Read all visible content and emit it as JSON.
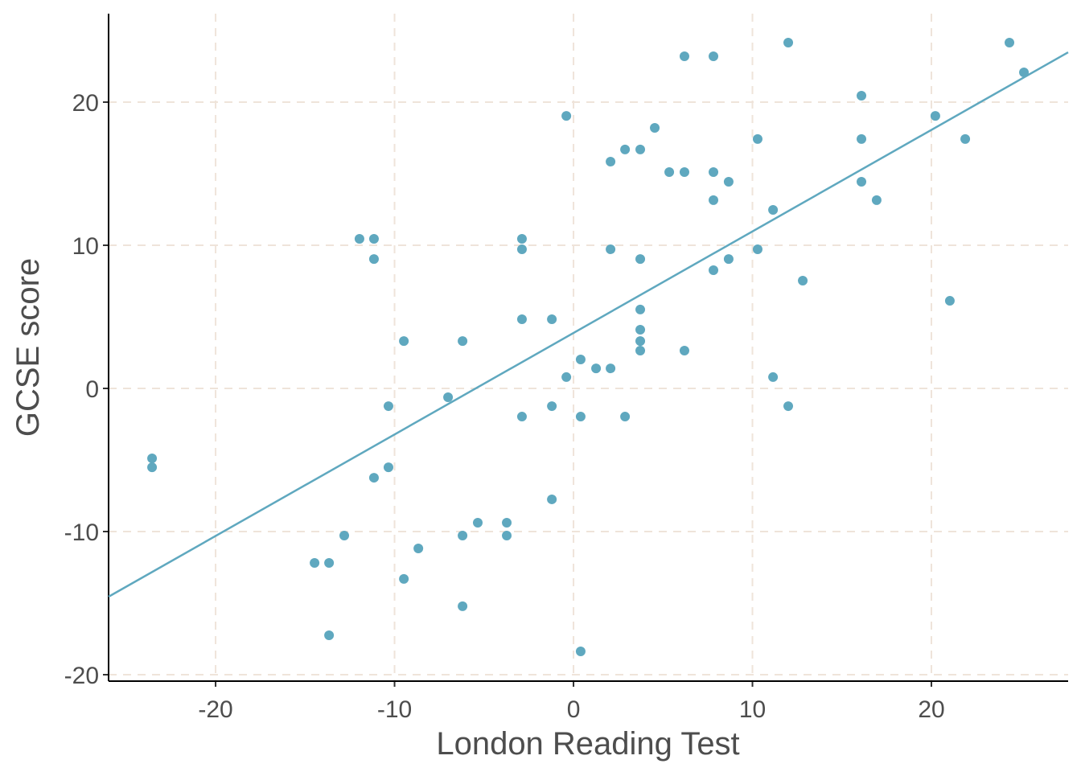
{
  "chart_data": {
    "type": "scatter",
    "x_label": "London Reading Test",
    "y_label": "GCSE score",
    "x": [
      -23.55,
      -23.55,
      -14.47,
      -13.66,
      -13.66,
      -12.81,
      -11.96,
      -11.15,
      -11.15,
      -11.15,
      -10.34,
      -10.34,
      -9.48,
      -9.48,
      -8.67,
      -7.01,
      -6.2,
      -6.2,
      -6.2,
      -5.35,
      -3.73,
      -3.73,
      -2.88,
      -2.88,
      -2.88,
      -2.88,
      -1.21,
      -1.21,
      -1.21,
      -0.4,
      -0.4,
      0.4,
      0.4,
      0.4,
      1.26,
      2.07,
      2.07,
      2.07,
      2.88,
      2.88,
      3.73,
      3.73,
      3.73,
      3.73,
      3.73,
      3.73,
      4.54,
      5.35,
      6.2,
      6.2,
      6.2,
      7.82,
      7.82,
      7.82,
      7.82,
      8.67,
      8.67,
      10.29,
      10.29,
      11.15,
      11.15,
      12.0,
      12.0,
      12.81,
      16.09,
      16.09,
      16.09,
      16.94,
      20.22,
      21.03,
      21.89,
      24.36,
      25.17
    ],
    "values": [
      -4.89,
      -5.51,
      -12.19,
      -12.19,
      -17.25,
      -10.28,
      10.45,
      10.45,
      9.04,
      -6.24,
      -1.24,
      -5.51,
      3.31,
      -13.31,
      -11.18,
      -0.62,
      3.31,
      -10.28,
      -15.22,
      -9.38,
      -9.38,
      -10.28,
      10.45,
      9.72,
      4.83,
      -1.97,
      4.83,
      -1.24,
      -7.75,
      19.04,
      0.79,
      2.02,
      -1.97,
      -18.37,
      1.4,
      1.4,
      15.84,
      9.72,
      16.69,
      -1.97,
      16.69,
      9.04,
      5.51,
      4.1,
      3.31,
      2.64,
      18.2,
      15.11,
      23.2,
      15.11,
      2.64,
      23.2,
      15.11,
      13.15,
      8.26,
      14.44,
      9.04,
      17.42,
      9.72,
      12.47,
      0.79,
      24.16,
      -1.24,
      7.53,
      20.45,
      17.42,
      14.44,
      13.15,
      19.04,
      6.12,
      17.42,
      24.16,
      22.08
    ],
    "color": "#5fa8bf",
    "fit_line": {
      "x": [
        -25.98,
        27.64
      ],
      "y": [
        -14.55,
        23.48
      ],
      "color": "#5fa8bf"
    },
    "xlim": [
      -25.98,
      27.64
    ],
    "ylim": [
      -20.45,
      26.18
    ],
    "xticks": [
      -20,
      -10,
      0,
      10,
      20
    ],
    "yticks": [
      -20,
      -10,
      0,
      10,
      20
    ],
    "grid": true
  }
}
